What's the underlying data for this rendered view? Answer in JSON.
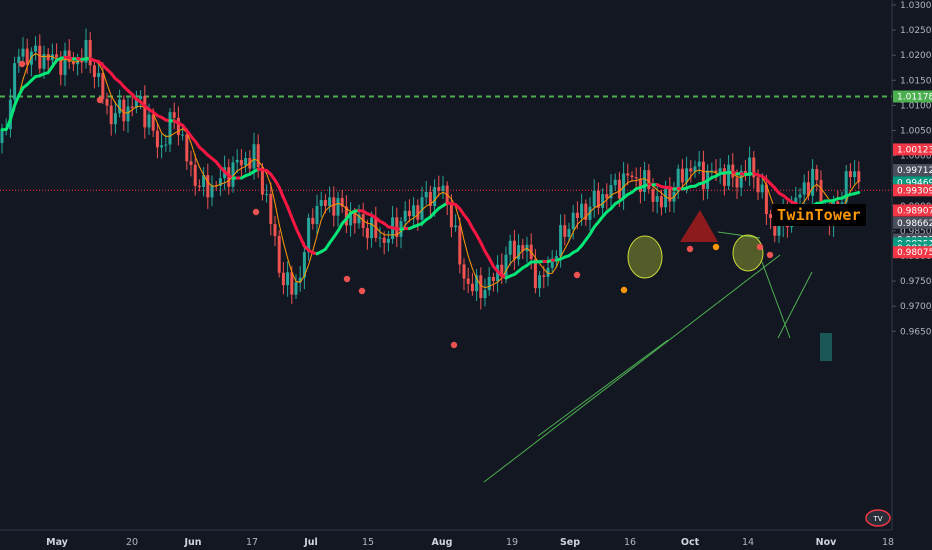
{
  "chart_data": {
    "type": "candlestick",
    "instrument_note": "",
    "y_axis": {
      "ticks": [
        1.03,
        1.025,
        1.02,
        1.015,
        1.01,
        1.005,
        1.0,
        0.995,
        0.99,
        0.985,
        0.98,
        0.975,
        0.97,
        0.965
      ],
      "tick_labels": [
        "1.03000",
        "1.02500",
        "1.02000",
        "1.01500",
        "1.01000",
        "1.00500",
        "1.00000",
        "0.99500",
        "0.99000",
        "0.98500",
        "0.98000",
        "0.97500",
        "0.97000",
        "0.96500"
      ],
      "range": [
        0.961,
        1.0315
      ]
    },
    "x_axis": {
      "tick_labels": [
        "May",
        "20",
        "Jun",
        "17",
        "Jul",
        "15",
        "Aug",
        "19",
        "Sep",
        "16",
        "Oct",
        "14",
        "Nov",
        "18"
      ],
      "bold_labels": [
        "May",
        "Jun",
        "Jul",
        "Aug",
        "Sep",
        "Oct",
        "Nov"
      ]
    },
    "price_labels": [
      {
        "value": "1.01178",
        "price": 1.01178,
        "color": "#4caf50",
        "text_color": "#ffffff"
      },
      {
        "value": "1.00123",
        "price": 1.00123,
        "color": "#f23645",
        "text_color": "#ffffff"
      },
      {
        "value": "0.99712",
        "price": 0.99712,
        "color": "#4a4f5e",
        "text_color": "#ffffff"
      },
      {
        "value": "0.99469",
        "price": 0.99469,
        "color": "#089981",
        "text_color": "#ffffff"
      },
      {
        "value": "0.99309",
        "price": 0.99309,
        "color": "#f23645",
        "text_color": "#ffffff"
      },
      {
        "value": "0.98907",
        "price": 0.98907,
        "color": "#f23645",
        "text_color": "#ffffff"
      },
      {
        "value": "0.98662",
        "price": 0.98662,
        "color": "#4a4f5e",
        "text_color": "#ffffff"
      },
      {
        "value": "0.98327",
        "price": 0.98327,
        "color": "#4a4f5e",
        "text_color": "#ffffff"
      },
      {
        "value": "0.98251",
        "price": 0.98251,
        "color": "#089981",
        "text_color": "#ffffff"
      },
      {
        "value": "0.98158",
        "price": 0.98158,
        "color": "#089981",
        "text_color": "#ffffff"
      },
      {
        "value": "0.98075",
        "price": 0.98075,
        "color": "#f23645",
        "text_color": "#ffffff"
      }
    ],
    "horizontal_lines": [
      {
        "price": 1.01178,
        "style": "dashed",
        "color": "#4caf50"
      },
      {
        "price": 0.99309,
        "style": "dotted",
        "color": "#f23645"
      }
    ],
    "annotation": "TwinTower",
    "colors": {
      "up": "#26a69a",
      "down": "#ef5350",
      "background": "#131722",
      "ma_fast": "#ff9800",
      "ma_slow_up": "#00e676",
      "ma_slow_down": "#ff1744"
    }
  }
}
